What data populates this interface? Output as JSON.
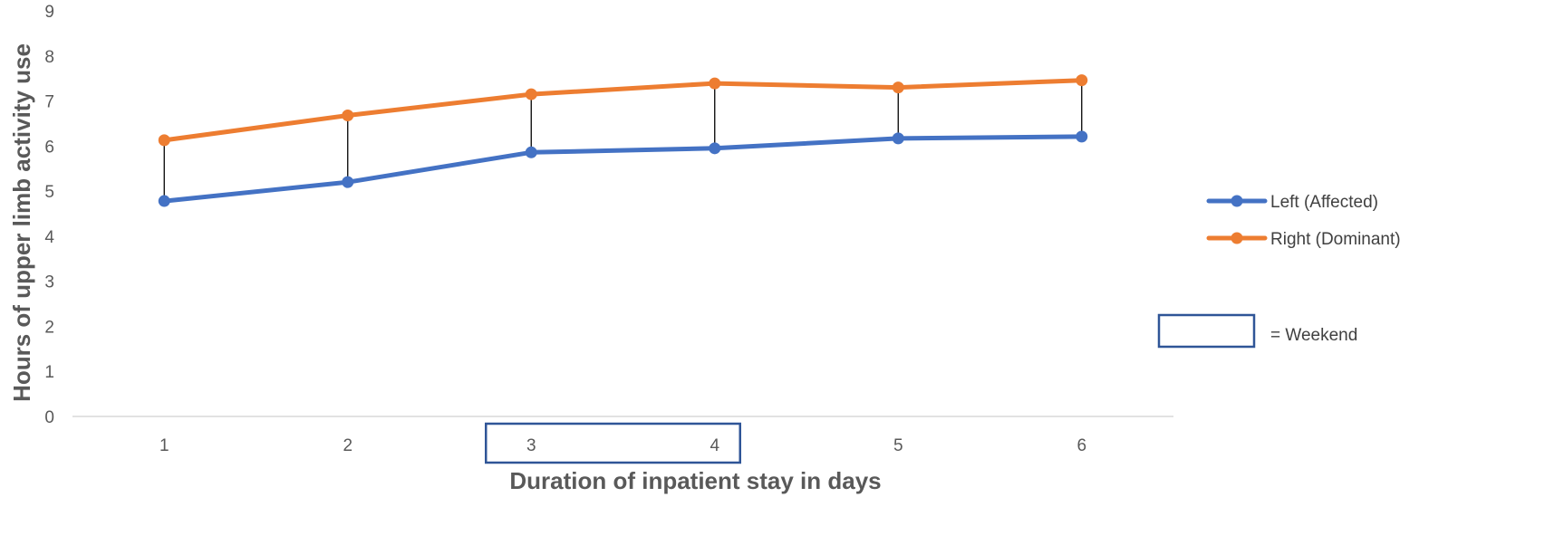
{
  "chart_data": {
    "type": "line",
    "title": "",
    "xlabel": "Duration of inpatient stay in days",
    "ylabel": "Hours of upper limb activity use",
    "categories": [
      "1",
      "2",
      "3",
      "4",
      "5",
      "6"
    ],
    "ylim": [
      0,
      9
    ],
    "yticks": [
      "0",
      "1",
      "2",
      "3",
      "4",
      "5",
      "6",
      "7",
      "8",
      "9"
    ],
    "grid": false,
    "series": [
      {
        "name": "Left (Affected)",
        "color": "#4472C4",
        "values": [
          4.78,
          5.2,
          5.86,
          5.95,
          6.17,
          6.21
        ]
      },
      {
        "name": "Right (Dominant)",
        "color": "#ED7D31",
        "values": [
          6.13,
          6.68,
          7.15,
          7.39,
          7.3,
          7.46
        ]
      }
    ],
    "connector_color": "#000000",
    "weekend_days": [
      "3",
      "4"
    ],
    "weekend_box_color": "#2F5597",
    "weekend_legend_label": "= Weekend",
    "legend_position": "right"
  }
}
